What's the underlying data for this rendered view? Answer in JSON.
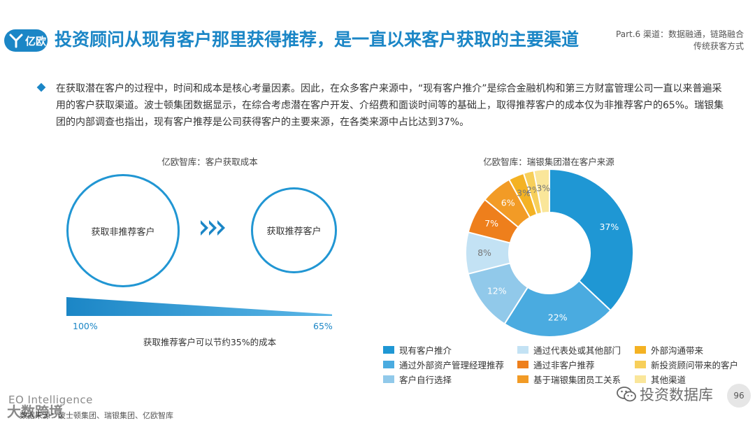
{
  "header": {
    "logo_text": "亿欧",
    "title": "投资顾问从现有客户那里获得推荐，是一直以来客户获取的主要渠道",
    "part_line1": "Part.6 渠道：数据融通，链路融合",
    "part_line2": "传统获客方式"
  },
  "body": {
    "paragraph": "在获取潜在客户的过程中，时间和成本是核心考量因素。因此，在众多客户来源中，“现有客户推介”是综合金融机构和第三方财富管理公司一直以来普遍采用的客户获取渠道。波士顿集团数据显示，在综合考虑潜在客户开发、介绍费和面谈时间等的基础上，取得推荐客户的成本仅为非推荐客户的65%。瑞银集团的内部调查也指出，现有客户推荐是公司获得客户的主要来源，在各类来源中占比达到37%。"
  },
  "left_figure": {
    "caption": "亿欧智库：客户获取成本",
    "circle_big_label": "获取非推荐客户",
    "circle_small_label": "获取推荐客户",
    "pct_left": "100%",
    "pct_right": "65%",
    "cost_start": 100,
    "cost_end": 65,
    "wedge_caption": "获取推荐客户可以节约35%的成本",
    "accent_color": "#1b86c6"
  },
  "chart_data": {
    "type": "pie",
    "donut": true,
    "title": "亿欧智库：瑞银集团潜在客户来源",
    "legend_position": "bottom",
    "slices": [
      {
        "name": "现有客户推介",
        "value": 37,
        "label": "37%",
        "color": "#1f97d4"
      },
      {
        "name": "通过外部资产管理经理推荐",
        "value": 22,
        "label": "22%",
        "color": "#4aabe0"
      },
      {
        "name": "客户自行选择",
        "value": 12,
        "label": "12%",
        "color": "#91c9ea"
      },
      {
        "name": "通过代表处或其他部门",
        "value": 8,
        "label": "8%",
        "color": "#c3e2f4"
      },
      {
        "name": "通过非客户推荐",
        "value": 7,
        "label": "7%",
        "color": "#ee7f1c"
      },
      {
        "name": "基于瑞银集团员工关系",
        "value": 6,
        "label": "6%",
        "color": "#f29b26"
      },
      {
        "name": "外部沟通带来",
        "value": 3,
        "label": "3%",
        "color": "#f4b223"
      },
      {
        "name": "新投资顾问带来的客户",
        "value": 2,
        "label": "2%",
        "color": "#f7cf5a"
      },
      {
        "name": "其他渠道",
        "value": 3,
        "label": "3%",
        "color": "#fae69a"
      }
    ],
    "legend_order": [
      "现有客户推介",
      "通过代表处或其他部门",
      "外部沟通带来",
      "通过外部资产管理经理推荐",
      "通过非客户推荐",
      "新投资顾问带来的客户",
      "客户自行选择",
      "基于瑞银集团员工关系",
      "其他渠道"
    ]
  },
  "footer": {
    "eo": "EO Intelligence",
    "source": "数据来源：波士顿集团、瑞银集团、亿欧智库",
    "watermark_left": "大数跨境",
    "watermark_right": "投资数据库",
    "page_number": "96"
  }
}
